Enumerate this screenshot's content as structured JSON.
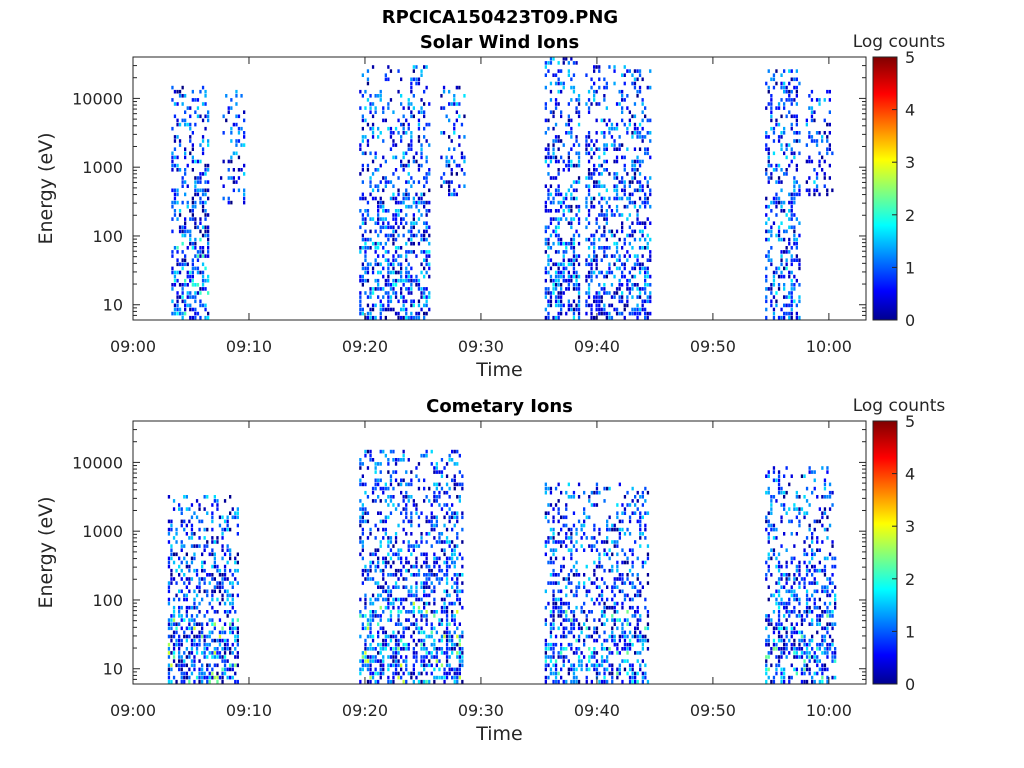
{
  "figure_title": "RPCICA150423T09.PNG",
  "chart_data": [
    {
      "type": "heatmap",
      "title": "Solar Wind Ions",
      "xlabel": "Time",
      "ylabel": "Energy (eV)",
      "x_ticks": [
        "09:00",
        "09:10",
        "09:20",
        "09:30",
        "09:40",
        "09:50",
        "10:00"
      ],
      "x_tick_minutes": [
        0,
        10,
        20,
        30,
        40,
        50,
        60
      ],
      "xlim_minutes": [
        0,
        63.2
      ],
      "y_scale": "log",
      "ylim": [
        6,
        40000
      ],
      "y_ticks": [
        10,
        100,
        1000,
        10000
      ],
      "y_tick_labels": [
        "10",
        "100",
        "1000",
        "10000"
      ],
      "colorbar": {
        "label": "Log counts",
        "range": [
          0,
          5
        ],
        "ticks": [
          "0",
          "1",
          "2",
          "3",
          "4",
          "5"
        ],
        "colormap": "jet"
      },
      "grid": false,
      "bursts": [
        {
          "t_start": 3.3,
          "t_end": 6.5,
          "e_min": 6,
          "e_max": 15000,
          "peak_log_counts": 2.3,
          "density": 0.55
        },
        {
          "t_start": 7.5,
          "t_end": 9.5,
          "e_min": 300,
          "e_max": 15000,
          "peak_log_counts": 0.6,
          "density": 0.3
        },
        {
          "t_start": 19.5,
          "t_end": 25.5,
          "e_min": 6,
          "e_max": 30000,
          "peak_log_counts": 2.0,
          "density": 0.5
        },
        {
          "t_start": 26.5,
          "t_end": 28.5,
          "e_min": 400,
          "e_max": 15000,
          "peak_log_counts": 0.6,
          "density": 0.35
        },
        {
          "t_start": 35.5,
          "t_end": 38.5,
          "e_min": 6,
          "e_max": 35000,
          "peak_log_counts": 2.0,
          "density": 0.55
        },
        {
          "t_start": 39.0,
          "t_end": 44.5,
          "e_min": 6,
          "e_max": 30000,
          "peak_log_counts": 1.8,
          "density": 0.5
        },
        {
          "t_start": 54.5,
          "t_end": 57.5,
          "e_min": 6,
          "e_max": 30000,
          "peak_log_counts": 2.0,
          "density": 0.5
        },
        {
          "t_start": 58.0,
          "t_end": 60.2,
          "e_min": 400,
          "e_max": 15000,
          "peak_log_counts": 0.6,
          "density": 0.35
        }
      ]
    },
    {
      "type": "heatmap",
      "title": "Cometary Ions",
      "xlabel": "Time",
      "ylabel": "Energy (eV)",
      "x_ticks": [
        "09:00",
        "09:10",
        "09:20",
        "09:30",
        "09:40",
        "09:50",
        "10:00"
      ],
      "x_tick_minutes": [
        0,
        10,
        20,
        30,
        40,
        50,
        60
      ],
      "xlim_minutes": [
        0,
        63.2
      ],
      "y_scale": "log",
      "ylim": [
        6,
        40000
      ],
      "y_ticks": [
        10,
        100,
        1000,
        10000
      ],
      "y_tick_labels": [
        "10",
        "100",
        "1000",
        "10000"
      ],
      "colorbar": {
        "label": "Log counts",
        "range": [
          0,
          5
        ],
        "ticks": [
          "0",
          "1",
          "2",
          "3",
          "4",
          "5"
        ],
        "colormap": "jet"
      },
      "grid": false,
      "bursts": [
        {
          "t_start": 3.0,
          "t_end": 9.0,
          "e_min": 6,
          "e_max": 3000,
          "peak_log_counts": 3.0,
          "density": 0.6
        },
        {
          "t_start": 19.5,
          "t_end": 28.5,
          "e_min": 6,
          "e_max": 15000,
          "peak_log_counts": 3.0,
          "density": 0.55
        },
        {
          "t_start": 35.5,
          "t_end": 44.5,
          "e_min": 6,
          "e_max": 5000,
          "peak_log_counts": 2.5,
          "density": 0.5
        },
        {
          "t_start": 54.5,
          "t_end": 60.5,
          "e_min": 6,
          "e_max": 8000,
          "peak_log_counts": 2.5,
          "density": 0.5
        }
      ]
    }
  ]
}
